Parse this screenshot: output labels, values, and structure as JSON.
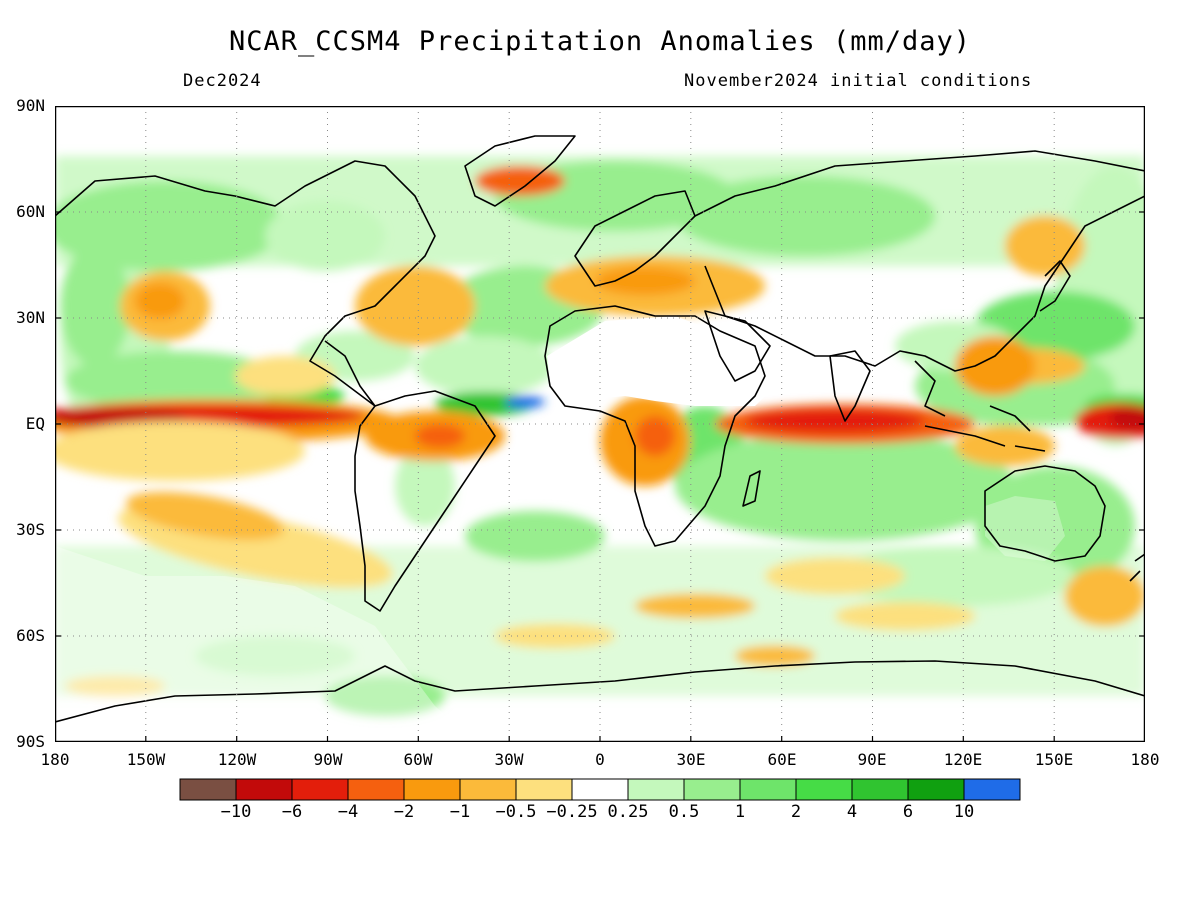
{
  "title": "NCAR_CCSM4 Precipitation Anomalies (mm/day)",
  "valid_month": "Dec2024",
  "initial_conditions": "November2024 initial conditions",
  "lat_labels": [
    "90N",
    "60N",
    "30N",
    "EQ",
    "30S",
    "60S",
    "90S"
  ],
  "lon_labels": [
    "180",
    "150W",
    "120W",
    "90W",
    "60W",
    "30W",
    "0",
    "30E",
    "60E",
    "90E",
    "120E",
    "150E",
    "180"
  ],
  "colorbar": {
    "labels": [
      "−10",
      "−6",
      "−4",
      "−2",
      "−1",
      "−0.5",
      "−0.25",
      "0.25",
      "0.5",
      "1",
      "2",
      "4",
      "6",
      "10"
    ],
    "colors": [
      "#7a4f42",
      "#c20a0a",
      "#e31e0b",
      "#f5600f",
      "#f99a0e",
      "#fbba3a",
      "#fde07e",
      "#ffffff",
      "#c4f8bc",
      "#98ee8e",
      "#6ee46a",
      "#46dc46",
      "#30c430",
      "#10a010",
      "#1f6ce8"
    ]
  }
}
